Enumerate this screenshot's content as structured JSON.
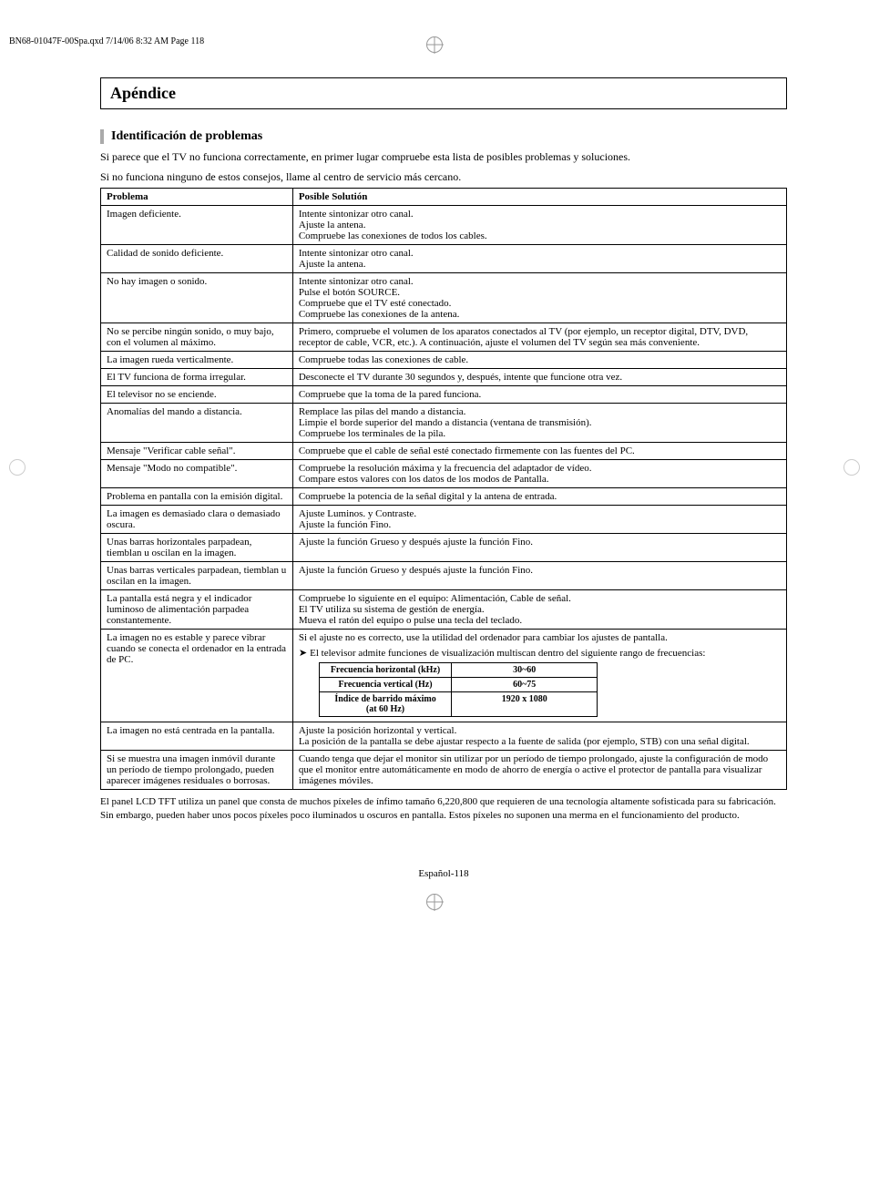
{
  "header_bar": "BN68-01047F-00Spa.qxd   7/14/06   8:32 AM   Page 118",
  "section_title": "Apéndice",
  "sub_title": "Identificación de problemas",
  "intro_line1": "Si parece que el TV no funciona correctamente, en primer lugar compruebe esta lista de posibles problemas y soluciones.",
  "intro_line2": "Si no funciona ninguno de estos consejos, llame al centro de servicio más cercano.",
  "table": {
    "headers": {
      "problem": "Problema",
      "solution": "Posible Solutión"
    },
    "rows": [
      {
        "p": "Imagen deficiente.",
        "s": [
          "Intente sintonizar otro canal.",
          "Ajuste la antena.",
          "Compruebe las conexiones de todos los cables."
        ]
      },
      {
        "p": "Calidad de sonido deficiente.",
        "s": [
          "Intente sintonizar otro canal.",
          "Ajuste la antena."
        ]
      },
      {
        "p": "No hay imagen o sonido.",
        "s": [
          "Intente sintonizar otro canal.",
          "Pulse el botón SOURCE.",
          "Compruebe que el TV esté conectado.",
          "Compruebe las conexiones de la antena."
        ]
      },
      {
        "p": "No se percibe ningún sonido, o muy bajo, con el volumen al máximo.",
        "s": [
          "Primero, compruebe el volumen de los aparatos conectados al TV (por ejemplo, un receptor digital, DTV, DVD, receptor de cable, VCR, etc.). A continuación, ajuste el volumen del TV según sea más conveniente."
        ]
      },
      {
        "p": "La imagen rueda verticalmente.",
        "s": [
          "Compruebe todas las conexiones de cable."
        ]
      },
      {
        "p": "El TV funciona de forma irregular.",
        "s": [
          "Desconecte el TV durante 30 segundos y, después, intente que funcione otra vez."
        ]
      },
      {
        "p": "El televisor no se enciende.",
        "s": [
          "Compruebe que la toma de la pared funciona."
        ]
      },
      {
        "p": "Anomalías del mando a distancia.",
        "s": [
          "Remplace las pilas del mando a distancia.",
          "Limpie el borde superior del mando a distancia (ventana de transmisión).",
          "Compruebe los terminales de la pila."
        ]
      },
      {
        "p": "Mensaje \"Verificar cable señal\".",
        "s": [
          "Compruebe que el cable de señal esté conectado firmemente con las fuentes del PC."
        ]
      },
      {
        "p": "Mensaje \"Modo no compatible\".",
        "s": [
          "Compruebe la resolución máxima y la frecuencia del adaptador de vídeo.",
          "Compare estos valores con los datos de los modos de Pantalla."
        ]
      },
      {
        "p": "Problema en pantalla con la emisión digital.",
        "s": [
          "Compruebe la potencia de la señal digital y la antena de entrada."
        ]
      },
      {
        "p": "La imagen es demasiado clara o demasiado oscura.",
        "s": [
          "Ajuste Luminos. y Contraste.",
          "Ajuste la función Fino."
        ]
      },
      {
        "p": "Unas barras horizontales parpadean, tiemblan u oscilan en la imagen.",
        "s": [
          "Ajuste la función Grueso y después ajuste la función Fino."
        ]
      },
      {
        "p": "Unas barras verticales parpadean, tiemblan u oscilan en la imagen.",
        "s": [
          "Ajuste la función Grueso y después ajuste la función Fino."
        ]
      },
      {
        "p": "La pantalla está negra y el indicador luminoso de alimentación parpadea constantemente.",
        "s": [
          "Compruebe lo siguiente en el equipo: Alimentación, Cable de señal.",
          "El TV utiliza su sistema de gestión de energía.",
          "Mueva el ratón del equipo o pulse una tecla del teclado."
        ]
      }
    ],
    "freq_row": {
      "p": "La imagen no es estable y parece vibrar cuando se conecta el ordenador en la entrada de PC.",
      "s1": "Si el ajuste no es correcto, use la utilidad del ordenador para cambiar los ajustes de pantalla.",
      "s2": "El televisor admite funciones de visualización multiscan dentro del siguiente rango de frecuencias:",
      "freq_table": [
        {
          "label": "Frecuencia horizontal (kHz)",
          "val": "30~60"
        },
        {
          "label": "Frecuencia vertical (Hz)",
          "val": "60~75"
        },
        {
          "label": "Índice de barrido máximo (at 60 Hz)",
          "val": "1920 x 1080"
        }
      ]
    },
    "rows2": [
      {
        "p": "La imagen no está centrada en la pantalla.",
        "s": [
          "Ajuste la posición horizontal y vertical.",
          "La posición de la pantalla se debe ajustar respecto a la fuente de salida (por ejemplo, STB) con una señal digital."
        ]
      },
      {
        "p": "Si se muestra una imagen inmóvil durante un período de tiempo prolongado, pueden aparecer imágenes residuales o borrosas.",
        "s": [
          "Cuando tenga que dejar el monitor sin utilizar por un período de tiempo prolongado, ajuste la configuración de modo que el monitor entre automáticamente en modo de ahorro de energía o active el protector de pantalla para visualizar imágenes móviles."
        ]
      }
    ]
  },
  "foot_note": "El panel LCD TFT utiliza un panel que consta de muchos píxeles de ínfimo tamaño 6,220,800 que requieren de una tecnología altamente sofisticada para su fabricación. Sin embargo, pueden haber unos pocos píxeles poco iluminados u oscuros en pantalla. Estos píxeles no suponen una merma en el funcionamiento del producto.",
  "page_num": "Español-118",
  "colors": {
    "text": "#000000",
    "bg": "#ffffff",
    "bar": "#aaaaaa",
    "crop": "#999999"
  }
}
